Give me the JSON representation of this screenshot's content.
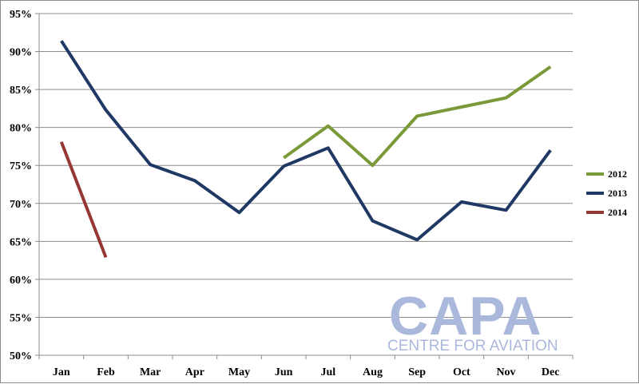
{
  "chart_data": {
    "type": "line",
    "categories": [
      "Jan",
      "Feb",
      "Mar",
      "Apr",
      "May",
      "Jun",
      "Jul",
      "Aug",
      "Sep",
      "Oct",
      "Nov",
      "Dec"
    ],
    "y_ticks": [
      "50%",
      "55%",
      "60%",
      "65%",
      "70%",
      "75%",
      "80%",
      "85%",
      "90%",
      "95%"
    ],
    "ylim": [
      50,
      95
    ],
    "grid": true,
    "legend_position": "right",
    "title": "",
    "xlabel": "",
    "ylabel": "",
    "series": [
      {
        "name": "2012",
        "color": "#7a9a3a",
        "values": [
          null,
          null,
          null,
          null,
          null,
          76.0,
          80.2,
          75.0,
          81.5,
          82.7,
          83.9,
          88.0
        ]
      },
      {
        "name": "2013",
        "color": "#1f3864",
        "values": [
          91.4,
          82.3,
          75.1,
          73.0,
          68.8,
          74.9,
          77.3,
          67.7,
          65.2,
          70.2,
          69.1,
          77.0
        ]
      },
      {
        "name": "2014",
        "color": "#953735",
        "values": [
          78.1,
          62.9,
          null,
          null,
          null,
          null,
          null,
          null,
          null,
          null,
          null,
          null
        ]
      }
    ]
  },
  "watermark": {
    "main": "CAPA",
    "sub": "CENTRE FOR AVIATION",
    "color": "#aab8dc"
  }
}
